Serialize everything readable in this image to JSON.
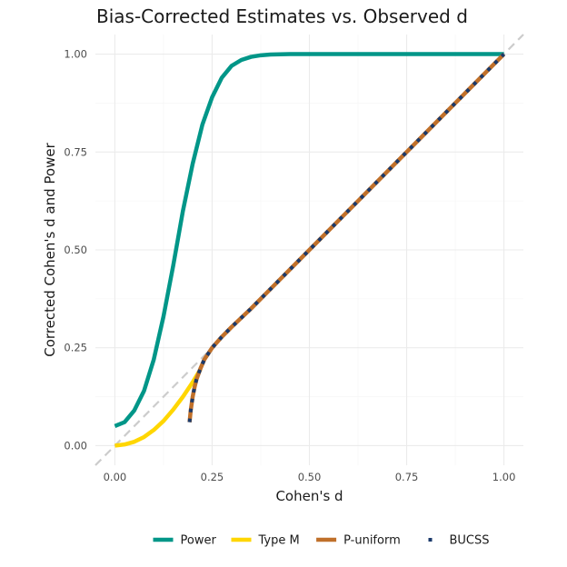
{
  "chart_data": {
    "type": "line",
    "title": "Bias-Corrected Estimates vs. Observed d",
    "xlabel": "Cohen's d",
    "ylabel": "Corrected Cohen's d and Power",
    "xlim": [
      -0.05,
      1.05
    ],
    "ylim": [
      -0.05,
      1.05
    ],
    "x_ticks": [
      0.0,
      0.25,
      0.5,
      0.75,
      1.0
    ],
    "x_tick_labels": [
      "0.00",
      "0.25",
      "0.50",
      "0.75",
      "1.00"
    ],
    "y_ticks": [
      0.0,
      0.25,
      0.5,
      0.75,
      1.0
    ],
    "y_tick_labels": [
      "0.00",
      "0.25",
      "0.50",
      "0.75",
      "1.00"
    ],
    "grid": true,
    "legend_position": "bottom",
    "reference_line": {
      "x": [
        -0.05,
        1.05
      ],
      "y": [
        -0.05,
        1.05
      ],
      "color": "#cccccc",
      "style": "dashed"
    },
    "series": [
      {
        "name": "Power",
        "color": "#009688",
        "style": "solid",
        "x": [
          0.0,
          0.025,
          0.05,
          0.075,
          0.1,
          0.125,
          0.15,
          0.175,
          0.2,
          0.225,
          0.25,
          0.275,
          0.3,
          0.325,
          0.35,
          0.375,
          0.4,
          0.45,
          0.5,
          0.6,
          0.7,
          0.8,
          0.9,
          1.0
        ],
        "y": [
          0.05,
          0.06,
          0.09,
          0.14,
          0.22,
          0.33,
          0.46,
          0.6,
          0.72,
          0.82,
          0.89,
          0.94,
          0.97,
          0.985,
          0.993,
          0.997,
          0.999,
          1.0,
          1.0,
          1.0,
          1.0,
          1.0,
          1.0,
          1.0
        ]
      },
      {
        "name": "Type M",
        "color": "#FFD600",
        "style": "solid",
        "x": [
          0.0,
          0.025,
          0.05,
          0.075,
          0.1,
          0.125,
          0.15,
          0.175,
          0.2,
          0.22
        ],
        "y": [
          0.0,
          0.003,
          0.01,
          0.022,
          0.04,
          0.063,
          0.092,
          0.125,
          0.162,
          0.195
        ]
      },
      {
        "name": "P-uniform",
        "color": "#C0702A",
        "style": "solid",
        "x": [
          0.192,
          0.195,
          0.2,
          0.205,
          0.21,
          0.22,
          0.23,
          0.25,
          0.275,
          0.3,
          0.35,
          0.4,
          0.5,
          0.6,
          0.7,
          0.8,
          0.9,
          1.0
        ],
        "y": [
          0.06,
          0.09,
          0.125,
          0.15,
          0.17,
          0.197,
          0.22,
          0.25,
          0.278,
          0.303,
          0.35,
          0.4,
          0.5,
          0.6,
          0.7,
          0.8,
          0.9,
          1.0
        ]
      },
      {
        "name": "BUCSS",
        "color": "#1B3A6B",
        "style": "dotted",
        "x": [
          0.192,
          0.195,
          0.2,
          0.205,
          0.21,
          0.22,
          0.23,
          0.25,
          0.275,
          0.3,
          0.35,
          0.4,
          0.5,
          0.6,
          0.7,
          0.8,
          0.9,
          1.0
        ],
        "y": [
          0.06,
          0.09,
          0.125,
          0.15,
          0.17,
          0.197,
          0.22,
          0.25,
          0.278,
          0.303,
          0.35,
          0.4,
          0.5,
          0.6,
          0.7,
          0.8,
          0.9,
          1.0
        ]
      }
    ]
  }
}
